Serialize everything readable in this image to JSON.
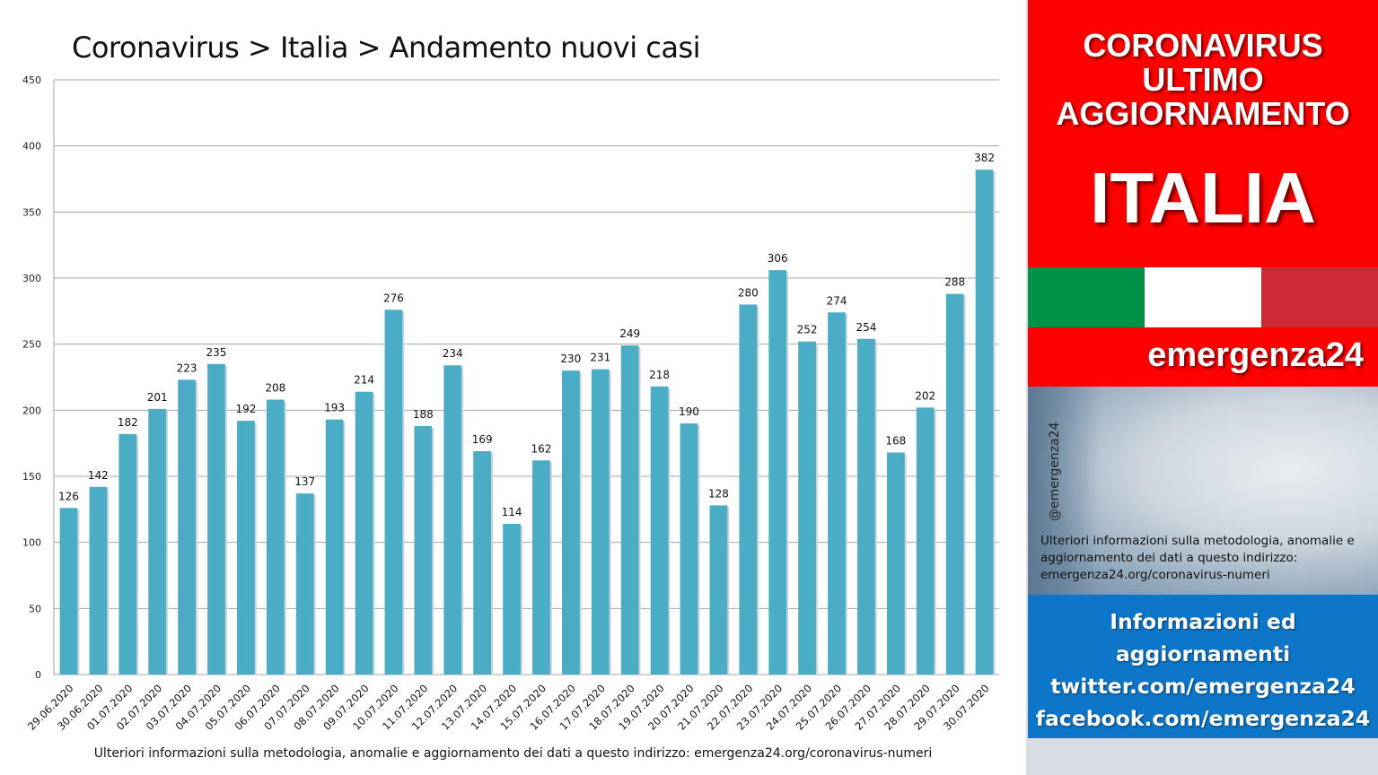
{
  "chart_title": "Coronavirus > Italia > Andamento nuovi casi",
  "footer_note": "Ulteriori informazioni sulla metodologia, anomalie e aggiornamento dei dati a questo indirizzo: emergenza24.org/coronavirus-numeri",
  "chart_data": {
    "type": "bar",
    "title": "Coronavirus > Italia > Andamento nuovi casi",
    "xlabel": "",
    "ylabel": "",
    "ylim": [
      0,
      450
    ],
    "yticks": [
      0,
      50,
      100,
      150,
      200,
      250,
      300,
      350,
      400,
      450
    ],
    "grid": true,
    "legend": "none",
    "categories": [
      "29.06.2020",
      "30.06.2020",
      "01.07.2020",
      "02.07.2020",
      "03.07.2020",
      "04.07.2020",
      "05.07.2020",
      "06.07.2020",
      "07.07.2020",
      "08.07.2020",
      "09.07.2020",
      "10.07.2020",
      "11.07.2020",
      "12.07.2020",
      "13.07.2020",
      "14.07.2020",
      "15.07.2020",
      "16.07.2020",
      "17.07.2020",
      "18.07.2020",
      "19.07.2020",
      "20.07.2020",
      "21.07.2020",
      "22.07.2020",
      "23.07.2020",
      "24.07.2020",
      "25.07.2020",
      "26.07.2020",
      "27.07.2020",
      "28.07.2020",
      "29.07.2020",
      "30.07.2020"
    ],
    "values": [
      126,
      142,
      182,
      201,
      223,
      235,
      192,
      208,
      137,
      193,
      214,
      276,
      188,
      234,
      169,
      114,
      162,
      230,
      231,
      249,
      218,
      190,
      128,
      280,
      306,
      252,
      274,
      254,
      168,
      202,
      288,
      382
    ],
    "bar_color": "#4bacc6"
  },
  "panel": {
    "red_lines": [
      "CORONAVIRUS",
      "ULTIMO",
      "AGGIORNAMENTO"
    ],
    "big_title": "ITALIA",
    "flag_colors": [
      "#009246",
      "#ffffff",
      "#ce2b37"
    ],
    "brand": "emergenza24",
    "handle": "@emergenza24",
    "note": "Ulteriori informazioni sulla metodologia, anomalie e aggiornamento dei dati a questo indirizzo: emergenza24.org/coronavirus-numeri",
    "blue_lines": [
      "Informazioni ed",
      "aggiornamenti",
      "twitter.com/emergenza24",
      "facebook.com/emergenza24"
    ]
  }
}
